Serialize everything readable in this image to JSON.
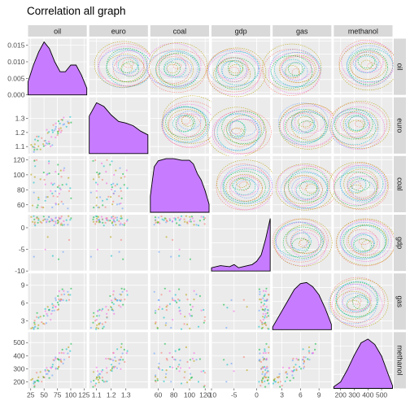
{
  "chart_data": {
    "type": "scatter",
    "title": "Correlation all graph",
    "variables": [
      "oil",
      "euro",
      "coal",
      "gdp",
      "gas",
      "methanol"
    ],
    "axes": {
      "oil": {
        "range": [
          20,
          130
        ],
        "ticks": [
          25,
          50,
          75,
          100,
          125
        ],
        "tick_labels": [
          "25",
          "50",
          "75",
          "100",
          "125"
        ]
      },
      "euro": {
        "range": [
          1.05,
          1.45
        ],
        "ticks": [
          1.1,
          1.2,
          1.3
        ],
        "tick_labels": [
          "1.1",
          "1.2",
          "1.3"
        ]
      },
      "coal": {
        "range": [
          50,
          125
        ],
        "ticks": [
          60,
          80,
          100,
          120
        ],
        "tick_labels": [
          "60",
          "80",
          "100",
          "120"
        ]
      },
      "gdp": {
        "range": [
          -10,
          3
        ],
        "ticks": [
          -10,
          -5,
          0
        ],
        "tick_labels": [
          "-10",
          "-5",
          "0"
        ]
      },
      "gas": {
        "range": [
          1.5,
          11
        ],
        "ticks": [
          3,
          6,
          9
        ],
        "tick_labels": [
          "3",
          "6",
          "9"
        ]
      },
      "methanol": {
        "range": [
          150,
          580
        ],
        "ticks": [
          200,
          300,
          400,
          500
        ],
        "tick_labels": [
          "200",
          "300",
          "400",
          "500"
        ]
      }
    },
    "density_axis": {
      "variable": "oil",
      "range": [
        0,
        0.017
      ],
      "ticks": [
        0,
        0.005,
        0.01,
        0.015
      ],
      "tick_labels": [
        "0.000",
        "0.005",
        "0.010",
        "0.015"
      ]
    },
    "diagonal_densities": {
      "oil": {
        "x": [
          20,
          30,
          40,
          50,
          60,
          70,
          80,
          90,
          100,
          110,
          120,
          130
        ],
        "y": [
          0.004,
          0.009,
          0.013,
          0.016,
          0.014,
          0.01,
          0.007,
          0.007,
          0.009,
          0.009,
          0.006,
          0.002
        ]
      },
      "euro": {
        "x": [
          1.05,
          1.1,
          1.15,
          1.2,
          1.25,
          1.3,
          1.35,
          1.4,
          1.45
        ],
        "y": [
          0.7,
          0.95,
          0.88,
          0.72,
          0.6,
          0.57,
          0.52,
          0.42,
          0.35
        ]
      },
      "coal": {
        "x": [
          50,
          55,
          60,
          70,
          80,
          90,
          100,
          105,
          110,
          115,
          120,
          125
        ],
        "y": [
          0.3,
          0.85,
          0.96,
          1.0,
          1.0,
          0.97,
          0.97,
          0.9,
          0.72,
          0.6,
          0.4,
          0.15
        ]
      },
      "gdp": {
        "x": [
          -10,
          -8,
          -6,
          -5,
          -4,
          -2,
          -1,
          0,
          1,
          2,
          3
        ],
        "y": [
          0.06,
          0.1,
          0.08,
          0.12,
          0.06,
          0.1,
          0.12,
          0.18,
          0.3,
          0.6,
          0.98
        ]
      },
      "gas": {
        "x": [
          1.5,
          3,
          4,
          5,
          6,
          7,
          8,
          9,
          10,
          11
        ],
        "y": [
          0.05,
          0.35,
          0.55,
          0.75,
          0.86,
          0.88,
          0.8,
          0.65,
          0.4,
          0.1
        ]
      },
      "methanol": {
        "x": [
          150,
          200,
          250,
          300,
          350,
          400,
          450,
          500,
          550,
          580
        ],
        "y": [
          0.03,
          0.12,
          0.35,
          0.62,
          0.85,
          0.92,
          0.82,
          0.6,
          0.25,
          0.05
        ]
      }
    },
    "diagonal_fill_color": "#C77CFF",
    "group_colors": [
      "#F8766D",
      "#B79F00",
      "#00BA38",
      "#00BFC4",
      "#619CFF",
      "#F564E3"
    ],
    "panel_background": "#EBEBEB",
    "strip_background": "#D9D9D9",
    "grid": true
  }
}
